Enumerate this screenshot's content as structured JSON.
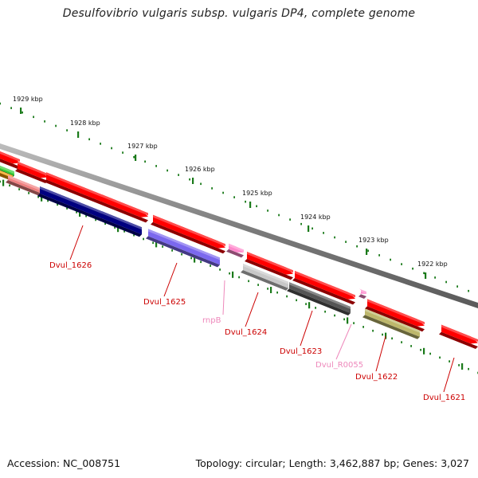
{
  "title": "Desulfovibrio vulgaris subsp. vulgaris DP4, complete genome",
  "footer": {
    "accession": "Accession: NC_008751",
    "summary": "Topology: circular; Length: 3,462,887 bp; Genes: 3,027"
  },
  "ruler": {
    "unit": "kbp",
    "ticks": [
      {
        "label": "1929 kbp"
      },
      {
        "label": "1928 kbp"
      },
      {
        "label": "1927 kbp"
      },
      {
        "label": "1926 kbp"
      },
      {
        "label": "1925 kbp"
      },
      {
        "label": "1924 kbp"
      },
      {
        "label": "1923 kbp"
      },
      {
        "label": "1922 kbp"
      }
    ]
  },
  "colors": {
    "cds": "#ff0000",
    "backbone": "#8c8c8c",
    "ticks": "#1a7a1a",
    "gene_label": "#cc0000",
    "rna_label": "#ee88bb"
  },
  "genes": [
    {
      "name": "Dvul_1626",
      "kind": "cds",
      "color": "#000080"
    },
    {
      "name": "Dvul_1625",
      "kind": "cds",
      "color": "#7b68ee"
    },
    {
      "name": "rnpB",
      "kind": "rna",
      "color": "#ff88cc"
    },
    {
      "name": "Dvul_1624",
      "kind": "cds",
      "color": "#c8c8c8"
    },
    {
      "name": "Dvul_1623",
      "kind": "cds",
      "color": "#555555"
    },
    {
      "name": "Dvul_R0055",
      "kind": "rna",
      "color": "#ff88cc"
    },
    {
      "name": "Dvul_1622",
      "kind": "cds",
      "color": "#bdb76b"
    },
    {
      "name": "Dvul_1621",
      "kind": "cds",
      "color": "#ff0000"
    }
  ]
}
